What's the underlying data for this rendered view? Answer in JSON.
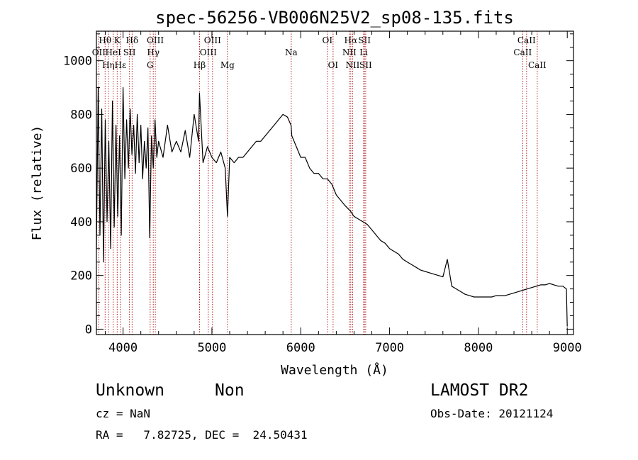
{
  "chart_data": {
    "type": "line",
    "title": "spec-56256-VB006N25V2_sp08-135.fits",
    "xlabel": "Wavelength (Å)",
    "ylabel": "Flux (relative)",
    "xlim": [
      3700,
      9070
    ],
    "ylim": [
      -20,
      1110
    ],
    "x_ticks": [
      4000,
      5000,
      6000,
      7000,
      8000,
      9000
    ],
    "y_ticks": [
      0,
      200,
      400,
      600,
      800,
      1000
    ],
    "x_tick_labels": [
      "4000",
      "5000",
      "6000",
      "7000",
      "8000",
      "9000"
    ],
    "y_tick_labels": [
      "0",
      "200",
      "400",
      "600",
      "800",
      "1000"
    ],
    "line_color": "#000000",
    "marker_color": "#b22222",
    "series": [
      {
        "x": [
          3700,
          3720,
          3740,
          3760,
          3780,
          3800,
          3820,
          3840,
          3860,
          3880,
          3900,
          3920,
          3940,
          3960,
          3980,
          4000,
          4020,
          4040,
          4060,
          4080,
          4100,
          4120,
          4140,
          4160,
          4180,
          4200,
          4220,
          4240,
          4260,
          4280,
          4300,
          4320,
          4340,
          4360,
          4380,
          4400,
          4450,
          4500,
          4550,
          4600,
          4650,
          4700,
          4750,
          4800,
          4850,
          4860,
          4900,
          4950,
          5000,
          5050,
          5100,
          5150,
          5175,
          5200,
          5250,
          5300,
          5350,
          5400,
          5450,
          5500,
          5550,
          5600,
          5650,
          5700,
          5750,
          5800,
          5850,
          5890,
          5900,
          5950,
          6000,
          6050,
          6100,
          6150,
          6200,
          6250,
          6300,
          6350,
          6400,
          6450,
          6500,
          6560,
          6600,
          6650,
          6700,
          6750,
          6800,
          6850,
          6900,
          6950,
          7000,
          7050,
          7100,
          7150,
          7200,
          7250,
          7300,
          7350,
          7400,
          7450,
          7500,
          7550,
          7600,
          7650,
          7700,
          7750,
          7800,
          7850,
          7900,
          7950,
          8000,
          8050,
          8100,
          8150,
          8200,
          8250,
          8300,
          8350,
          8400,
          8450,
          8500,
          8550,
          8600,
          8650,
          8700,
          8750,
          8800,
          8850,
          8900,
          8950,
          8990,
          9000
        ],
        "y": [
          300,
          900,
          350,
          820,
          250,
          780,
          400,
          700,
          300,
          850,
          380,
          760,
          420,
          720,
          350,
          900,
          560,
          780,
          600,
          820,
          650,
          760,
          580,
          800,
          620,
          760,
          560,
          700,
          600,
          750,
          340,
          720,
          600,
          780,
          640,
          700,
          640,
          760,
          660,
          700,
          660,
          740,
          640,
          800,
          700,
          880,
          620,
          680,
          640,
          620,
          660,
          600,
          420,
          640,
          620,
          640,
          640,
          660,
          680,
          700,
          700,
          720,
          740,
          760,
          780,
          800,
          790,
          760,
          720,
          680,
          640,
          640,
          600,
          580,
          580,
          560,
          560,
          540,
          500,
          480,
          460,
          440,
          420,
          410,
          400,
          390,
          370,
          350,
          330,
          320,
          300,
          290,
          280,
          260,
          250,
          240,
          230,
          220,
          215,
          210,
          205,
          200,
          195,
          260,
          160,
          150,
          140,
          130,
          125,
          120,
          120,
          120,
          120,
          120,
          125,
          125,
          125,
          130,
          135,
          140,
          145,
          150,
          155,
          160,
          165,
          165,
          170,
          165,
          160,
          160,
          150,
          10
        ]
      }
    ],
    "line_markers": [
      {
        "label": "Hθ",
        "x": 3798,
        "row": 1
      },
      {
        "label": "OII",
        "x": 3727,
        "row": 2
      },
      {
        "label": "Hη",
        "x": 3835,
        "row": 3
      },
      {
        "label": "K",
        "x": 3934,
        "row": 1
      },
      {
        "label": "HeI",
        "x": 3889,
        "row": 2
      },
      {
        "label": "SII",
        "x": 4072,
        "row": 2
      },
      {
        "label": "Hε",
        "x": 3970,
        "row": 3
      },
      {
        "label": "Hδ",
        "x": 4102,
        "row": 1
      },
      {
        "label": "OIII",
        "x": 4363,
        "row": 1
      },
      {
        "label": "Hγ",
        "x": 4340,
        "row": 2
      },
      {
        "label": "G",
        "x": 4305,
        "row": 3
      },
      {
        "label": "Hβ",
        "x": 4861,
        "row": 3
      },
      {
        "label": "OIII",
        "x": 5007,
        "row": 1
      },
      {
        "label": "OIII",
        "x": 4959,
        "row": 2
      },
      {
        "label": "Mg",
        "x": 5175,
        "row": 3
      },
      {
        "label": "Na",
        "x": 5893,
        "row": 2
      },
      {
        "label": "OI",
        "x": 6300,
        "row": 1
      },
      {
        "label": "OI",
        "x": 6364,
        "row": 3
      },
      {
        "label": "Hα",
        "x": 6563,
        "row": 1
      },
      {
        "label": "SII",
        "x": 6717,
        "row": 1
      },
      {
        "label": "NII",
        "x": 6548,
        "row": 2
      },
      {
        "label": "Li",
        "x": 6708,
        "row": 2
      },
      {
        "label": "NII",
        "x": 6584,
        "row": 3
      },
      {
        "label": "SII",
        "x": 6731,
        "row": 3
      },
      {
        "label": "CaII",
        "x": 8542,
        "row": 1
      },
      {
        "label": "CaII",
        "x": 8498,
        "row": 2
      },
      {
        "label": "CaII",
        "x": 8662,
        "row": 3
      }
    ]
  },
  "info": {
    "class": "Unknown",
    "subclass": "Non",
    "survey": "LAMOST DR2",
    "cz": "cz = NaN",
    "obs_date": "Obs-Date: 20121124",
    "coords": "RA =   7.82725, DEC =  24.50431"
  }
}
